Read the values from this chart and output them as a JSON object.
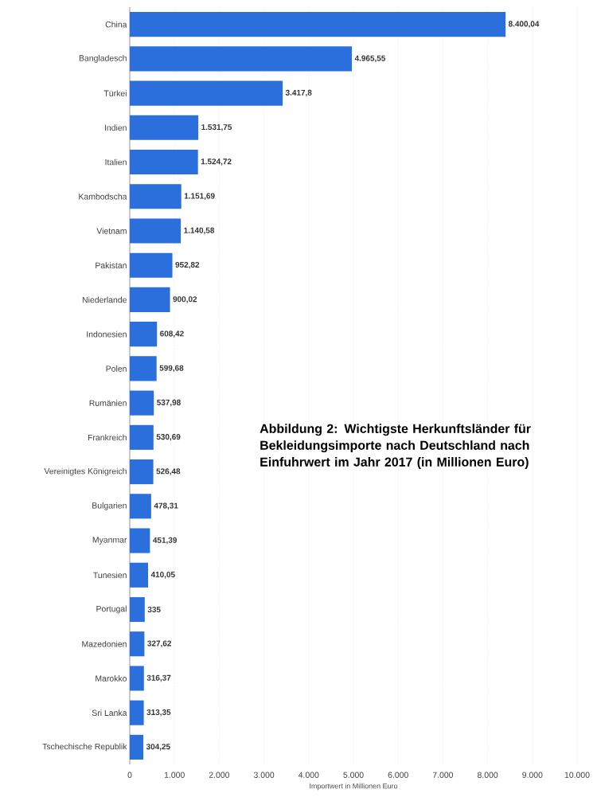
{
  "chart_data": {
    "type": "bar",
    "orientation": "horizontal",
    "categories": [
      "China",
      "Bangladesch",
      "Türkei",
      "Indien",
      "Italien",
      "Kambodscha",
      "Vietnam",
      "Pakistan",
      "Niederlande",
      "Indonesien",
      "Polen",
      "Rumänien",
      "Frankreich",
      "Vereinigtes Königreich",
      "Bulgarien",
      "Myanmar",
      "Tunesien",
      "Portugal",
      "Mazedonien",
      "Marokko",
      "Sri Lanka",
      "Tschechische Republik"
    ],
    "values": [
      8400.04,
      4965.55,
      3417.8,
      1531.75,
      1524.72,
      1151.69,
      1140.58,
      952.82,
      900.02,
      608.42,
      599.68,
      537.98,
      530.69,
      526.48,
      478.31,
      451.39,
      410.05,
      335,
      327.62,
      316.37,
      313.35,
      304.25
    ],
    "value_labels": [
      "8.400,04",
      "4.965,55",
      "3.417,8",
      "1.531,75",
      "1.524,72",
      "1.151,69",
      "1.140,58",
      "952,82",
      "900,02",
      "608,42",
      "599,68",
      "537,98",
      "530,69",
      "526,48",
      "478,31",
      "451,39",
      "410,05",
      "335",
      "327,62",
      "316,37",
      "313,35",
      "304,25"
    ],
    "color": "#2a6fdb",
    "xlim": [
      0,
      10000
    ],
    "xticks": [
      0,
      {
        "value": 1000,
        "label": "1.000"
      },
      {
        "value": 2000,
        "label": "2.000"
      },
      {
        "value": 3000,
        "label": "3.000"
      },
      {
        "value": 4000,
        "label": "4.000"
      },
      {
        "value": 5000,
        "label": "5.000"
      },
      {
        "value": 6000,
        "label": "6.000"
      },
      {
        "value": 7000,
        "label": "7.000"
      },
      {
        "value": 8000,
        "label": "8.000"
      },
      {
        "value": 9000,
        "label": "9.000"
      },
      {
        "value": 10000,
        "label": "10.000"
      }
    ],
    "xlabel": "Importwert in Millionen Euro",
    "grid": "x",
    "annotations": [
      "**Abbildung 2: Wichtigste Herkunftsländer für Bekleidungsimporte nach Deutschland nach Einfuhrwert im Jahr 2017 (in Millionen Euro)**"
    ]
  }
}
